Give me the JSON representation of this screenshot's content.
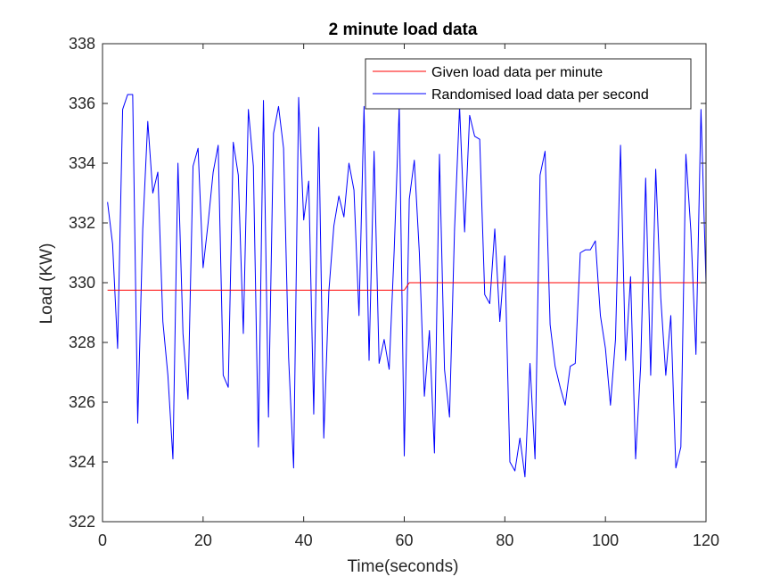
{
  "chart_data": {
    "type": "line",
    "title": "2 minute load data",
    "xlabel": "Time(seconds)",
    "ylabel": "Load (KW)",
    "xlim": [
      0,
      120
    ],
    "ylim": [
      322,
      338
    ],
    "xticks": [
      0,
      20,
      40,
      60,
      80,
      100,
      120
    ],
    "yticks": [
      322,
      324,
      326,
      328,
      330,
      332,
      334,
      336,
      338
    ],
    "grid": false,
    "legend_position": "top-right",
    "series": [
      {
        "name": "Given load data per minute",
        "color": "#ff0000",
        "x": [
          1,
          60,
          61,
          120
        ],
        "y": [
          329.75,
          329.75,
          330.0,
          330.0
        ]
      },
      {
        "name": "Randomised load data per second",
        "color": "#0000ff",
        "x": [
          1,
          2,
          3,
          4,
          5,
          6,
          7,
          8,
          9,
          10,
          11,
          12,
          13,
          14,
          15,
          16,
          17,
          18,
          19,
          20,
          21,
          22,
          23,
          24,
          25,
          26,
          27,
          28,
          29,
          30,
          31,
          32,
          33,
          34,
          35,
          36,
          37,
          38,
          39,
          40,
          41,
          42,
          43,
          44,
          45,
          46,
          47,
          48,
          49,
          50,
          51,
          52,
          53,
          54,
          55,
          56,
          57,
          58,
          59,
          60,
          61,
          62,
          63,
          64,
          65,
          66,
          67,
          68,
          69,
          70,
          71,
          72,
          73,
          74,
          75,
          76,
          77,
          78,
          79,
          80,
          81,
          82,
          83,
          84,
          85,
          86,
          87,
          88,
          89,
          90,
          91,
          92,
          93,
          94,
          95,
          96,
          97,
          98,
          99,
          100,
          101,
          102,
          103,
          104,
          105,
          106,
          107,
          108,
          109,
          110,
          111,
          112,
          113,
          114,
          115,
          116,
          117,
          118,
          119,
          120
        ],
        "y": [
          332.7,
          331.3,
          327.8,
          335.8,
          336.3,
          336.3,
          325.3,
          331.8,
          335.4,
          333.0,
          333.7,
          328.7,
          326.9,
          324.1,
          334.0,
          328.3,
          326.1,
          333.9,
          334.5,
          330.5,
          332.0,
          333.7,
          334.6,
          326.9,
          326.5,
          334.7,
          333.6,
          328.3,
          335.8,
          333.9,
          324.5,
          336.1,
          325.5,
          335.0,
          335.9,
          334.5,
          327.5,
          323.8,
          336.2,
          332.1,
          333.4,
          325.6,
          335.2,
          324.8,
          329.7,
          331.9,
          332.9,
          332.2,
          334.0,
          333.1,
          328.9,
          335.9,
          327.4,
          334.4,
          327.3,
          328.1,
          327.1,
          331.1,
          335.9,
          324.2,
          332.8,
          334.1,
          331.0,
          326.2,
          328.4,
          324.3,
          334.3,
          327.1,
          325.5,
          331.8,
          335.9,
          331.7,
          335.6,
          334.9,
          334.8,
          329.6,
          329.3,
          331.8,
          328.7,
          330.9,
          324.0,
          323.7,
          324.8,
          323.5,
          327.3,
          324.1,
          333.6,
          334.4,
          328.6,
          327.2,
          326.5,
          325.9,
          327.2,
          327.3,
          331.0,
          331.1,
          331.1,
          331.4,
          328.9,
          327.8,
          325.9,
          328.1,
          334.6,
          327.4,
          330.2,
          324.1,
          327.2,
          333.5,
          326.9,
          333.8,
          329.5,
          326.9,
          328.9,
          323.8,
          324.5,
          334.3,
          331.7,
          327.6,
          335.8,
          330.0
        ]
      }
    ]
  }
}
